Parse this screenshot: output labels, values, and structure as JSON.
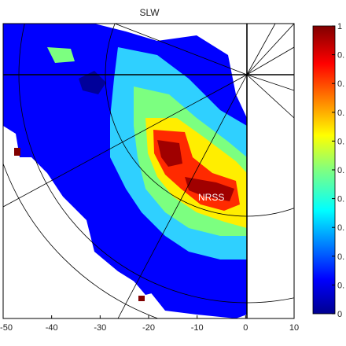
{
  "chart_data": {
    "type": "heatmap",
    "title": "SLW",
    "xlabel": "",
    "ylabel": "",
    "xlim": [
      -50,
      10
    ],
    "x_ticks": [
      "-50",
      "-40",
      "-30",
      "-20",
      "-10",
      "0",
      "10"
    ],
    "colorbar": {
      "colormap": "jet",
      "range": [
        0,
        1
      ],
      "ticks": [
        "0",
        "0.",
        "0.",
        "0.",
        "0.",
        "0.",
        "0.",
        "0.",
        "0.",
        "0.",
        "1"
      ]
    },
    "annotations": [
      {
        "text": "NRSS"
      }
    ],
    "radar_overlay": {
      "range_rings": 3,
      "radials": 12,
      "center_x": 0
    },
    "grid": false
  },
  "colors": {
    "background": "#ffffff",
    "axes_edge": "#000000",
    "overlay_lines": "#000000",
    "low": "#00008f",
    "high": "#800000"
  }
}
